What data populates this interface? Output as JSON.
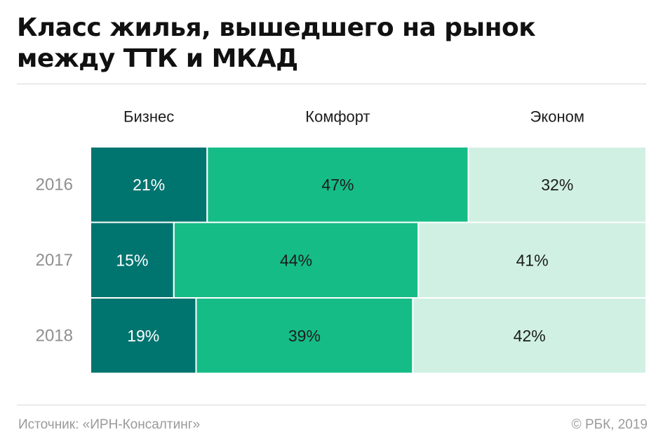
{
  "title": "Класс жилья, вышедшего на рынок между ТТК и МКАД",
  "chart_data": {
    "type": "bar",
    "stacked": "percent",
    "orientation": "horizontal",
    "title": "Класс жилья, вышедшего на рынок между ТТК и МКАД",
    "categories": [
      "2016",
      "2017",
      "2018"
    ],
    "series": [
      {
        "name": "Бизнес",
        "values": [
          21,
          15,
          19
        ],
        "labels": [
          "21%",
          "15%",
          "19%"
        ],
        "color": "#00746f",
        "text_color": "#ffffff"
      },
      {
        "name": "Комфорт",
        "values": [
          47,
          44,
          39
        ],
        "labels": [
          "47%",
          "44%",
          "39%"
        ],
        "color": "#15bc86",
        "text_color": "#1c1c1c"
      },
      {
        "name": "Эконом",
        "values": [
          32,
          41,
          42
        ],
        "labels": [
          "32%",
          "41%",
          "42%"
        ],
        "color": "#d0f0e3",
        "text_color": "#1c1c1c"
      }
    ],
    "legend_position": "top"
  },
  "footer": {
    "source": "Источник: «ИРН-Консалтинг»",
    "copyright": "© РБК, 2019"
  }
}
